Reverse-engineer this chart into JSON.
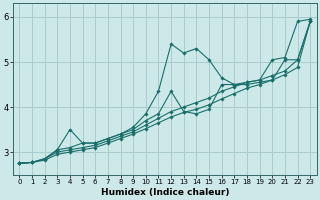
{
  "title": "",
  "xlabel": "Humidex (Indice chaleur)",
  "background_color": "#cce8e8",
  "grid_color": "#aacccc",
  "line_color": "#1a6e6a",
  "xlim": [
    -0.5,
    23.5
  ],
  "ylim": [
    2.5,
    6.3
  ],
  "xticks": [
    0,
    1,
    2,
    3,
    4,
    5,
    6,
    7,
    8,
    9,
    10,
    11,
    12,
    13,
    14,
    15,
    16,
    17,
    18,
    19,
    20,
    21,
    22,
    23
  ],
  "yticks": [
    3,
    4,
    5,
    6
  ],
  "series": [
    {
      "x": [
        0,
        1,
        2,
        3,
        4,
        5,
        6,
        7,
        8,
        9,
        10,
        11,
        12,
        13,
        14,
        15,
        16,
        17,
        18,
        19,
        20,
        21,
        22,
        23
      ],
      "y": [
        2.75,
        2.77,
        2.85,
        3.05,
        3.5,
        3.2,
        3.2,
        3.3,
        3.4,
        3.55,
        3.85,
        4.35,
        5.4,
        5.2,
        5.3,
        5.05,
        4.65,
        4.5,
        4.55,
        4.6,
        5.05,
        5.1,
        5.9,
        5.95
      ]
    },
    {
      "x": [
        0,
        1,
        2,
        3,
        4,
        5,
        6,
        7,
        8,
        9,
        10,
        11,
        12,
        13,
        14,
        15,
        16,
        17,
        18,
        19,
        20,
        21,
        22,
        23
      ],
      "y": [
        2.75,
        2.77,
        2.85,
        3.05,
        3.1,
        3.2,
        3.2,
        3.3,
        3.4,
        3.5,
        3.7,
        3.85,
        4.35,
        3.9,
        3.85,
        3.95,
        4.5,
        4.5,
        4.5,
        4.55,
        4.6,
        5.05,
        5.05,
        5.9
      ]
    },
    {
      "x": [
        0,
        1,
        2,
        3,
        4,
        5,
        6,
        7,
        8,
        9,
        10,
        11,
        12,
        13,
        14,
        15,
        16,
        17,
        18,
        19,
        20,
        21,
        22,
        23
      ],
      "y": [
        2.75,
        2.77,
        2.85,
        3.0,
        3.05,
        3.1,
        3.15,
        3.25,
        3.35,
        3.45,
        3.6,
        3.75,
        3.9,
        4.0,
        4.1,
        4.2,
        4.35,
        4.45,
        4.55,
        4.6,
        4.7,
        4.8,
        5.05,
        5.9
      ]
    },
    {
      "x": [
        0,
        1,
        2,
        3,
        4,
        5,
        6,
        7,
        8,
        9,
        10,
        11,
        12,
        13,
        14,
        15,
        16,
        17,
        18,
        19,
        20,
        21,
        22,
        23
      ],
      "y": [
        2.75,
        2.77,
        2.82,
        2.95,
        3.0,
        3.05,
        3.1,
        3.2,
        3.3,
        3.4,
        3.52,
        3.65,
        3.78,
        3.88,
        3.95,
        4.05,
        4.18,
        4.3,
        4.42,
        4.5,
        4.6,
        4.72,
        4.88,
        5.9
      ]
    }
  ]
}
